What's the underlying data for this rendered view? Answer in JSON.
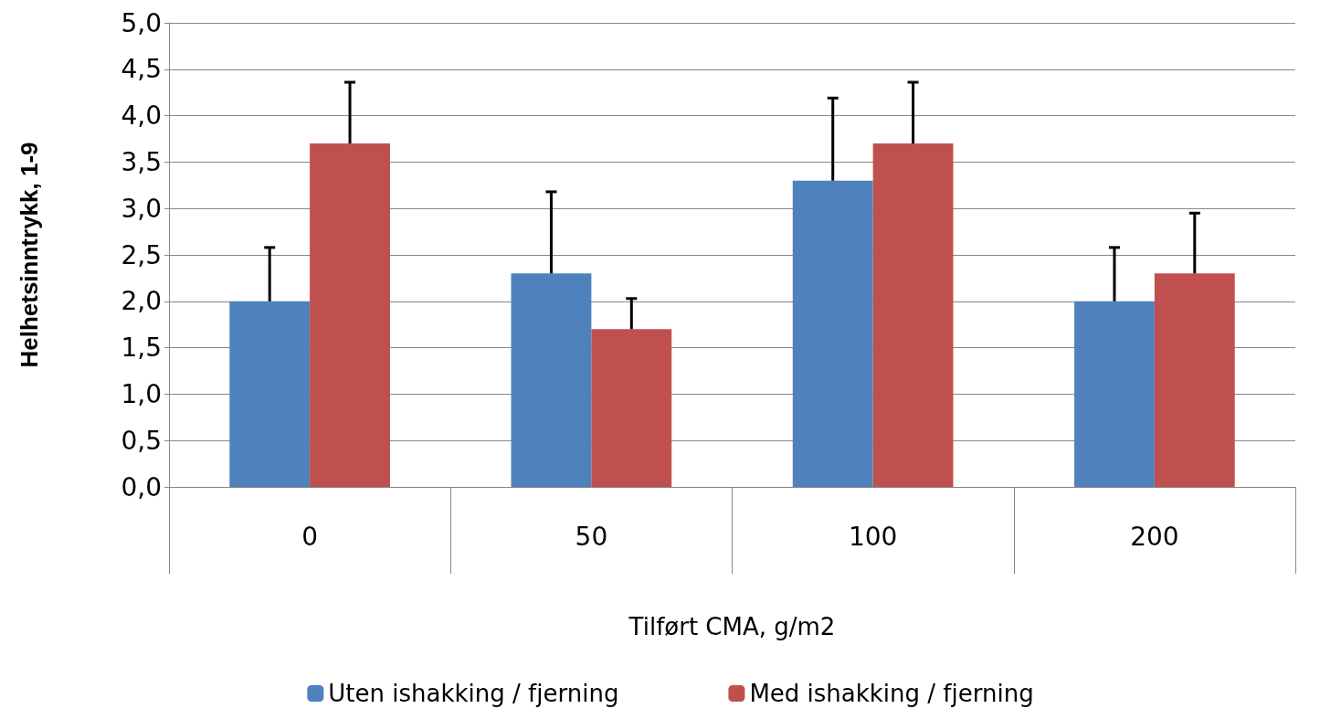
{
  "chart_data": {
    "type": "bar",
    "xlabel": "Tilført CMA, g/m2",
    "ylabel": "Helhetsinntrykk, 1-9",
    "categories": [
      "0",
      "50",
      "100",
      "200"
    ],
    "series": [
      {
        "name": "Uten ishakking / fjerning",
        "color": "#4f81bd",
        "values": [
          2.0,
          2.3,
          3.3,
          2.0
        ],
        "errors": [
          [
            2.0,
            2.58
          ],
          [
            2.3,
            3.18
          ],
          [
            3.3,
            4.19
          ],
          [
            2.0,
            2.58
          ]
        ]
      },
      {
        "name": "Med ishakking / fjerning",
        "color": "#c0504d",
        "values": [
          3.7,
          1.7,
          3.7,
          2.3
        ],
        "errors": [
          [
            3.7,
            4.36
          ],
          [
            1.7,
            2.03
          ],
          [
            3.7,
            4.36
          ],
          [
            2.3,
            2.95
          ]
        ]
      }
    ],
    "ylim": [
      0,
      5
    ],
    "yticks": [
      {
        "value": 0,
        "label": "0,0"
      },
      {
        "value": 0.5,
        "label": "0,5"
      },
      {
        "value": 1,
        "label": "1,0"
      },
      {
        "value": 1.5,
        "label": "1,5"
      },
      {
        "value": 2,
        "label": "2,0"
      },
      {
        "value": 2.5,
        "label": "2,5"
      },
      {
        "value": 3,
        "label": "3,0"
      },
      {
        "value": 3.5,
        "label": "3,5"
      },
      {
        "value": 4,
        "label": "4,0"
      },
      {
        "value": 4.5,
        "label": "4,5"
      },
      {
        "value": 5,
        "label": "5,0"
      }
    ],
    "grid": "y",
    "legend": "bottom"
  }
}
